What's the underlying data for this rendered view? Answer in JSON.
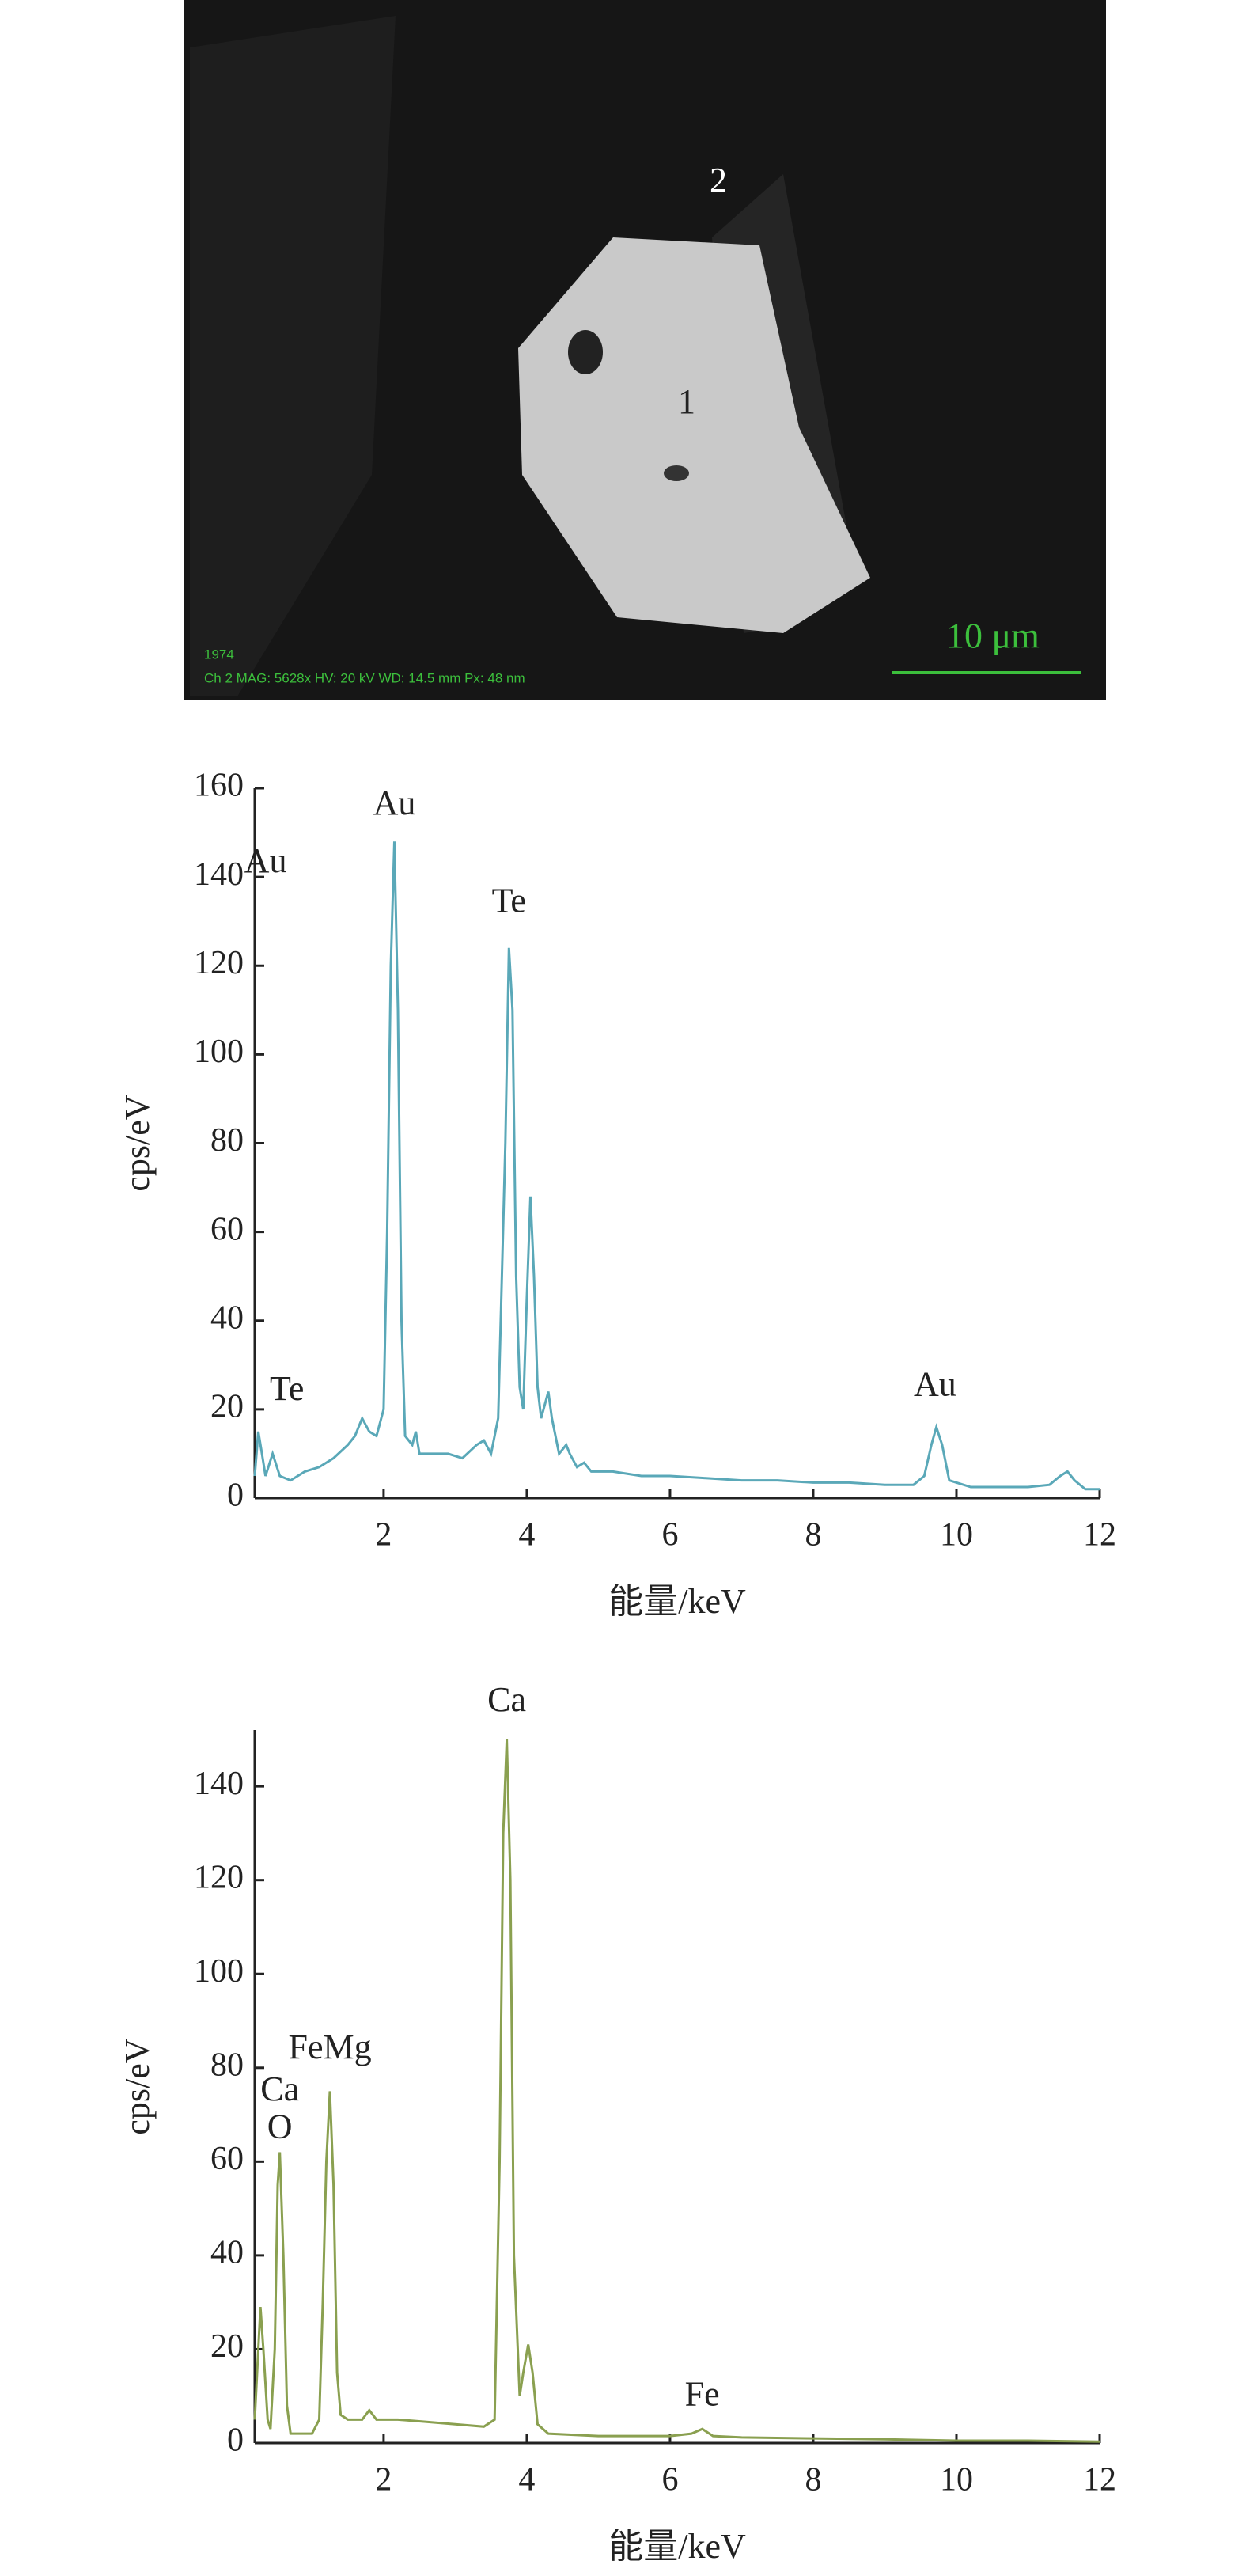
{
  "image": {
    "points": [
      "2",
      "1"
    ],
    "scale_bar": "10 μm",
    "info": [
      "1974",
      "Ch 2   MAG: 5628x   HV: 20 kV   WD: 14.5 mm   Px: 48 nm"
    ]
  },
  "chart_data": [
    {
      "type": "line",
      "xlabel": "能量/keV",
      "ylabel": "cps/eV",
      "color": "#5aa8b8",
      "xlim": [
        0.2,
        12
      ],
      "xticks": [
        2,
        4,
        6,
        8,
        10,
        12
      ],
      "ylim": [
        0,
        160
      ],
      "yticks": [
        0,
        20,
        40,
        60,
        80,
        100,
        120,
        140,
        160
      ],
      "x": [
        0.2,
        0.25,
        0.3,
        0.35,
        0.45,
        0.55,
        0.7,
        0.9,
        1.1,
        1.3,
        1.5,
        1.6,
        1.7,
        1.8,
        1.9,
        2.0,
        2.05,
        2.1,
        2.15,
        2.2,
        2.25,
        2.3,
        2.4,
        2.45,
        2.5,
        2.7,
        2.9,
        3.1,
        3.3,
        3.4,
        3.5,
        3.6,
        3.7,
        3.75,
        3.8,
        3.85,
        3.9,
        3.95,
        4.0,
        4.05,
        4.1,
        4.15,
        4.2,
        4.3,
        4.35,
        4.45,
        4.55,
        4.6,
        4.7,
        4.8,
        4.9,
        5.2,
        5.6,
        6,
        6.5,
        7,
        7.5,
        8,
        8.5,
        9,
        9.4,
        9.55,
        9.65,
        9.72,
        9.8,
        9.9,
        10.2,
        10.6,
        11,
        11.3,
        11.45,
        11.55,
        11.65,
        11.8,
        12
      ],
      "values": [
        5,
        15,
        10,
        5,
        10,
        5,
        4,
        6,
        7,
        9,
        12,
        14,
        18,
        15,
        14,
        20,
        60,
        120,
        148,
        110,
        40,
        14,
        12,
        15,
        10,
        10,
        10,
        9,
        12,
        13,
        10,
        18,
        80,
        124,
        110,
        50,
        25,
        20,
        45,
        68,
        50,
        25,
        18,
        24,
        18,
        10,
        12,
        10,
        7,
        8,
        6,
        6,
        5,
        5,
        4.5,
        4,
        4,
        3.5,
        3.5,
        3,
        3,
        5,
        12,
        16,
        12,
        4,
        2.5,
        2.5,
        2.5,
        3,
        5,
        6,
        4,
        2,
        2
      ],
      "annotations": [
        {
          "text": "Au",
          "x": 2.15,
          "y": 152
        },
        {
          "text": "Te",
          "x": 3.75,
          "y": 130
        },
        {
          "text": "Te",
          "x": 0.65,
          "y": 20
        },
        {
          "text": "Au",
          "x": 9.7,
          "y": 21
        },
        {
          "text": "Au",
          "x": 0.35,
          "y": 139
        }
      ]
    },
    {
      "type": "line",
      "xlabel": "能量/keV",
      "ylabel": "cps/eV",
      "color": "#8aa050",
      "xlim": [
        0.2,
        12
      ],
      "xticks": [
        2,
        4,
        6,
        8,
        10,
        12
      ],
      "ylim": [
        0,
        152
      ],
      "yticks": [
        0,
        20,
        40,
        60,
        80,
        100,
        120,
        140
      ],
      "x": [
        0.2,
        0.25,
        0.28,
        0.32,
        0.38,
        0.42,
        0.48,
        0.52,
        0.55,
        0.6,
        0.65,
        0.7,
        0.9,
        1.0,
        1.1,
        1.15,
        1.2,
        1.25,
        1.3,
        1.35,
        1.4,
        1.5,
        1.7,
        1.8,
        1.9,
        2.2,
        2.6,
        3.0,
        3.4,
        3.55,
        3.62,
        3.67,
        3.72,
        3.77,
        3.82,
        3.9,
        3.95,
        4.02,
        4.08,
        4.15,
        4.3,
        5,
        6,
        6.3,
        6.45,
        6.6,
        7,
        8,
        9,
        10,
        11,
        12
      ],
      "values": [
        5,
        20,
        29,
        20,
        5,
        3,
        20,
        55,
        62,
        40,
        8,
        2,
        2,
        2,
        5,
        30,
        60,
        75,
        55,
        15,
        6,
        5,
        5,
        7,
        5,
        5,
        4.5,
        4,
        3.5,
        5,
        60,
        130,
        150,
        120,
        40,
        10,
        15,
        21,
        15,
        4,
        2,
        1.5,
        1.5,
        2,
        3,
        1.5,
        1.2,
        1,
        0.8,
        0.5,
        0.5,
        0.3
      ],
      "annotations": [
        {
          "text": "Ca",
          "x": 3.72,
          "y": 154
        },
        {
          "text": "FeMg",
          "x": 1.25,
          "y": 80
        },
        {
          "text": "Ca",
          "x": 0.55,
          "y": 71
        },
        {
          "text": "O",
          "x": 0.55,
          "y": 63
        },
        {
          "text": "Fe",
          "x": 6.45,
          "y": 6
        }
      ]
    }
  ]
}
